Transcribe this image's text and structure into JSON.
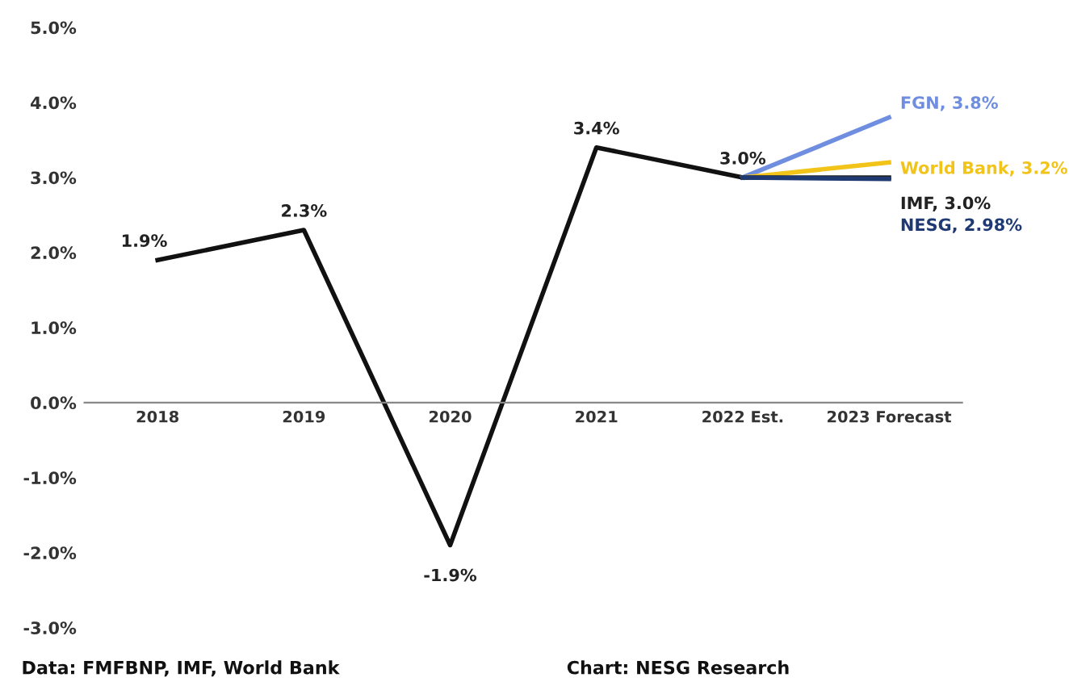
{
  "chart_data": {
    "type": "line",
    "categories": [
      "2018",
      "2019",
      "2020",
      "2021",
      "2022 Est.",
      "2023 Forecast"
    ],
    "series": [
      {
        "color": "#111111",
        "values": [
          1.9,
          2.3,
          -1.9,
          3.4,
          3.0,
          null
        ],
        "value_labels": [
          "1.9%",
          "2.3%",
          "-1.9%",
          "3.4%",
          "3.0%",
          null
        ]
      },
      {
        "name": "FGN, 3.8%",
        "color": "#6f8ee0",
        "values": [
          null,
          null,
          null,
          null,
          3.0,
          3.8
        ]
      },
      {
        "name": "World Bank, 3.2%",
        "color": "#f2c318",
        "values": [
          null,
          null,
          null,
          null,
          3.0,
          3.2
        ]
      },
      {
        "name": "IMF, 3.0%",
        "color": "#222222",
        "values": [
          null,
          null,
          null,
          null,
          3.0,
          3.0
        ]
      },
      {
        "name": "NESG, 2.98%",
        "color": "#1f3a73",
        "values": [
          null,
          null,
          null,
          null,
          3.0,
          2.98
        ]
      }
    ],
    "ylim": [
      -3.0,
      5.0
    ],
    "yticks": [
      {
        "value": -3.0,
        "label": "-3.0%"
      },
      {
        "value": -2.0,
        "label": "-2.0%"
      },
      {
        "value": -1.0,
        "label": "-1.0%"
      },
      {
        "value": 0.0,
        "label": "0.0%"
      },
      {
        "value": 1.0,
        "label": "1.0%"
      },
      {
        "value": 2.0,
        "label": "2.0%"
      },
      {
        "value": 3.0,
        "label": "3.0%"
      },
      {
        "value": 4.0,
        "label": "4.0%"
      },
      {
        "value": 5.0,
        "label": "5.0%"
      }
    ],
    "grid": false,
    "legend": false,
    "marker": "none",
    "line_style": "solid",
    "annotations": [
      "Data: FMFBNP, IMF, World Bank",
      "Chart: NESG Research"
    ]
  }
}
